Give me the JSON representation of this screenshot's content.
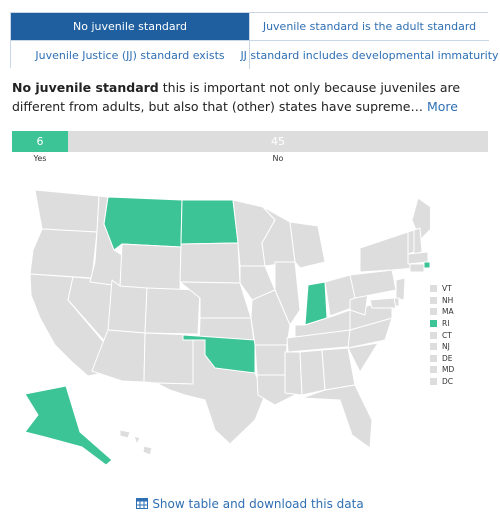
{
  "tabs": [
    {
      "label": "No juvenile standard",
      "active": true
    },
    {
      "label": "Juvenile standard is the adult standard",
      "active": false
    },
    {
      "label": "Juvenile Justice (JJ) standard exists",
      "active": false
    },
    {
      "label": "JJ standard includes developmental immaturity",
      "active": false
    }
  ],
  "description": {
    "bold": "No juvenile standard",
    "text": " this is important not only because juveniles are different from adults, but also that (other) states have supreme…",
    "more": "More"
  },
  "summary": {
    "yes_count": "6",
    "yes_label": "Yes",
    "no_count": "45",
    "no_label": "No"
  },
  "map": {
    "highlight_color": "#3cc497",
    "base_color": "#dddddd",
    "highlighted_states": [
      "MT",
      "ND",
      "IN",
      "OK",
      "AK",
      "RI"
    ]
  },
  "legend": [
    {
      "code": "VT",
      "on": false
    },
    {
      "code": "NH",
      "on": false
    },
    {
      "code": "MA",
      "on": false
    },
    {
      "code": "RI",
      "on": true
    },
    {
      "code": "CT",
      "on": false
    },
    {
      "code": "NJ",
      "on": false
    },
    {
      "code": "DE",
      "on": false
    },
    {
      "code": "MD",
      "on": false
    },
    {
      "code": "DC",
      "on": false
    }
  ],
  "footer": {
    "icon": "table-icon",
    "label": "Show table and download this data"
  }
}
